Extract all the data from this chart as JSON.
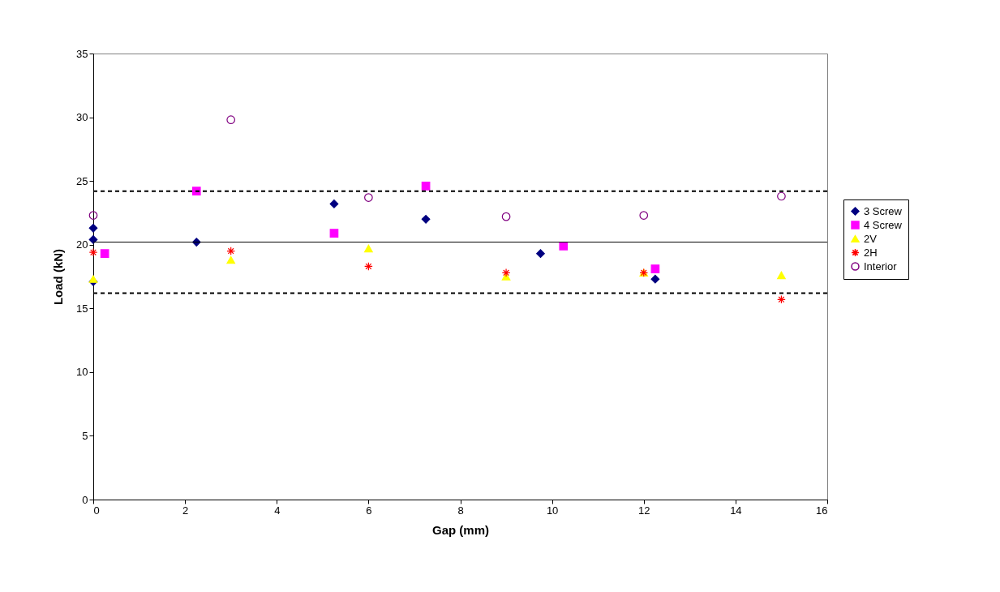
{
  "chart_data": {
    "type": "scatter",
    "xlabel": "Gap (mm)",
    "ylabel": "Load (kN)",
    "xlim": [
      0,
      16
    ],
    "xticks": [
      0,
      2,
      4,
      6,
      8,
      10,
      12,
      14,
      16
    ],
    "ylim": [
      0,
      35
    ],
    "yticks": [
      0,
      5,
      10,
      15,
      20,
      25,
      30,
      35
    ],
    "grid": false,
    "legend": "right",
    "series": [
      {
        "name": "3 Screw",
        "color": "#000080",
        "marker": "diamond",
        "x": [
          0,
          0,
          0,
          2.25,
          5.25,
          7.25,
          9.75,
          12.25
        ],
        "values": [
          21.3,
          20.4,
          17.1,
          20.2,
          23.2,
          22.0,
          19.3,
          17.3
        ]
      },
      {
        "name": "4 Screw",
        "color": "#ff00ff",
        "marker": "square",
        "x": [
          0.25,
          2.25,
          5.25,
          7.25,
          10.25,
          12.25
        ],
        "values": [
          19.3,
          24.2,
          20.9,
          24.6,
          19.9,
          18.1
        ]
      },
      {
        "name": "2V",
        "color": "#ffff00",
        "marker": "triangle",
        "x": [
          0,
          3,
          6,
          9,
          12,
          15
        ],
        "values": [
          17.3,
          18.8,
          19.7,
          17.5,
          17.8,
          17.6
        ]
      },
      {
        "name": "2H",
        "color": "#ff0000",
        "marker": "cross",
        "x": [
          0,
          3,
          6,
          9,
          12,
          15
        ],
        "values": [
          19.4,
          19.5,
          18.3,
          17.8,
          17.8,
          15.7
        ]
      },
      {
        "name": "Interior",
        "color": "#800080",
        "marker": "circle",
        "x": [
          0,
          3,
          6,
          9,
          12,
          15
        ],
        "values": [
          22.3,
          29.8,
          23.7,
          22.2,
          22.3,
          23.8
        ]
      }
    ],
    "ref_lines": [
      {
        "axis": "y",
        "value": 24.2,
        "color": "#000000",
        "line_style": "dashed"
      },
      {
        "axis": "y",
        "value": 20.2,
        "color": "#000000",
        "line_style": "solid"
      },
      {
        "axis": "y",
        "value": 16.2,
        "color": "#000000",
        "line_style": "dashed"
      }
    ]
  }
}
